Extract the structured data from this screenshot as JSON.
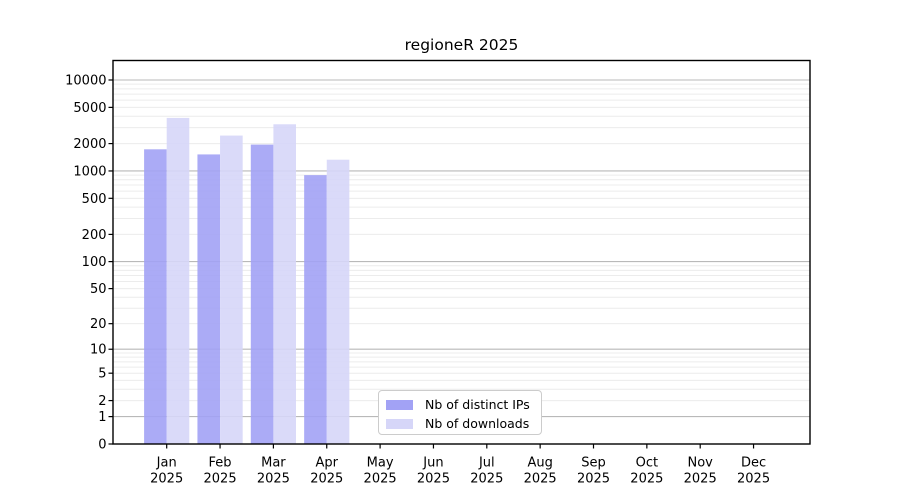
{
  "title": "regioneR 2025",
  "chart_data": {
    "type": "bar",
    "title": "regioneR 2025",
    "scale": "log1p",
    "categories": [
      "Jan",
      "Feb",
      "Mar",
      "Apr",
      "May",
      "Jun",
      "Jul",
      "Aug",
      "Sep",
      "Oct",
      "Nov",
      "Dec"
    ],
    "category_year": "2025",
    "series": [
      {
        "name": "Nb of distinct IPs",
        "color": "#a2a2f5",
        "values": [
          1730,
          1520,
          1950,
          900,
          null,
          null,
          null,
          null,
          null,
          null,
          null,
          null
        ]
      },
      {
        "name": "Nb of downloads",
        "color": "#d6d6f8",
        "values": [
          3830,
          2450,
          3260,
          1330,
          null,
          null,
          null,
          null,
          null,
          null,
          null,
          null
        ]
      }
    ],
    "y_ticks": [
      0,
      1,
      2,
      5,
      10,
      20,
      50,
      100,
      200,
      500,
      1000,
      2000,
      5000,
      10000
    ],
    "ylim": [
      0,
      16000
    ],
    "grid": true,
    "legend_position": "lower center"
  },
  "colors": {
    "major_grid": "#b9b9b9",
    "minor_grid": "#ececec",
    "axis": "#000000",
    "legend_border": "#cccccc",
    "background": "#ffffff"
  }
}
